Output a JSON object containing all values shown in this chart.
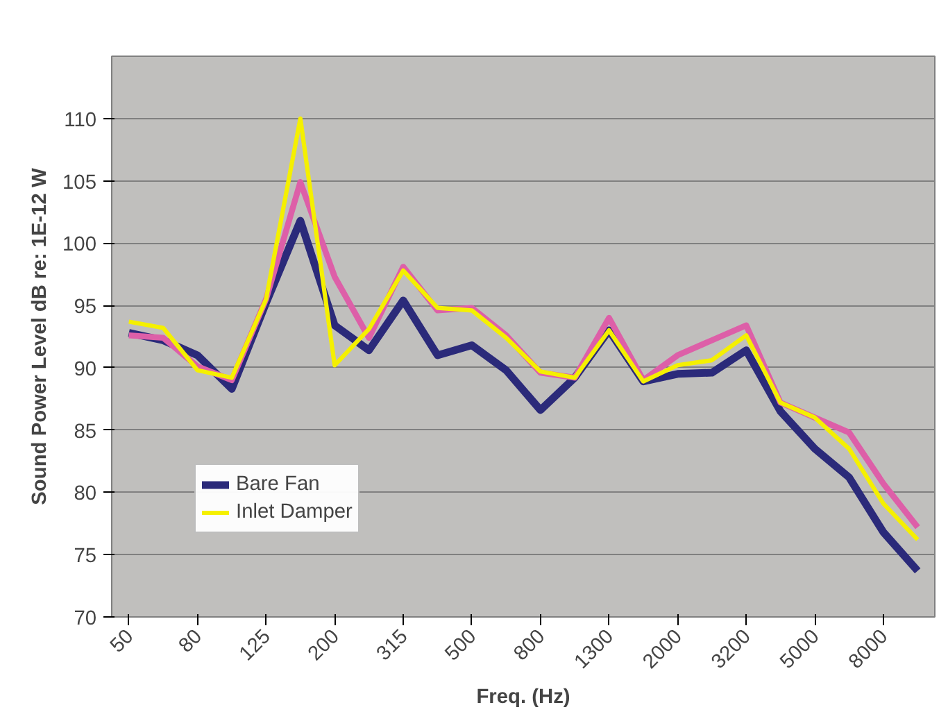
{
  "chart_data": {
    "type": "line",
    "xlabel": "Freq. (Hz)",
    "ylabel": "Sound Power Level dB re: 1E-12 W",
    "categories": [
      "50",
      null,
      "80",
      null,
      "125",
      null,
      "200",
      null,
      "315",
      null,
      "500",
      null,
      "800",
      null,
      "1300",
      null,
      "2000",
      null,
      "3200",
      null,
      "5000",
      null,
      "8000",
      null
    ],
    "series": [
      {
        "name": "Bare Fan",
        "color": "#2b2a7a",
        "values": [
          92.8,
          92.2,
          91.0,
          88.3,
          95.2,
          101.8,
          93.4,
          91.4,
          95.4,
          91.0,
          91.8,
          89.8,
          86.6,
          89.2,
          93.0,
          88.9,
          89.5,
          89.6,
          91.4,
          86.5,
          83.5,
          81.2,
          76.8,
          73.7
        ]
      },
      {
        "color": "#dd5fa8",
        "values": [
          92.6,
          92.4,
          90.1,
          89.0,
          95.5,
          104.9,
          97.3,
          92.4,
          98.1,
          94.6,
          94.8,
          92.6,
          89.6,
          89.2,
          94.0,
          89.0,
          91.0,
          92.2,
          93.4,
          87.2,
          86.0,
          84.8,
          80.7,
          77.2
        ]
      },
      {
        "name": "Inlet Damper",
        "color": "#f5f000",
        "values": [
          93.7,
          93.2,
          89.8,
          89.2,
          95.5,
          110.0,
          90.2,
          93.1,
          97.8,
          94.8,
          94.6,
          92.4,
          89.7,
          89.2,
          93.0,
          88.9,
          90.2,
          90.6,
          92.6,
          87.2,
          86.0,
          83.5,
          79.1,
          76.2
        ]
      }
    ],
    "ylim": [
      70,
      115
    ],
    "yticks": [
      70,
      75,
      80,
      85,
      90,
      95,
      100,
      105,
      110
    ],
    "grid": "y",
    "legend": "bottom left",
    "line_style": "solid"
  }
}
